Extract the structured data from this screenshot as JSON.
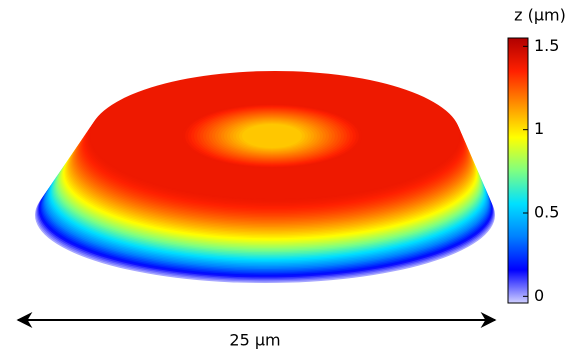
{
  "chart_data": {
    "type": "surface3d",
    "colorbar_label": "z (µm)",
    "zlim": [
      -0.04,
      1.55
    ],
    "zticks": [
      0,
      0.5,
      1,
      1.5
    ],
    "colormap": [
      "#d0d0ff",
      "#0000ff",
      "#0080ff",
      "#00e0ff",
      "#80ff80",
      "#ffff00",
      "#ff9000",
      "#ff2000",
      "#b00000"
    ],
    "scale_bar_label": "25 µm"
  }
}
